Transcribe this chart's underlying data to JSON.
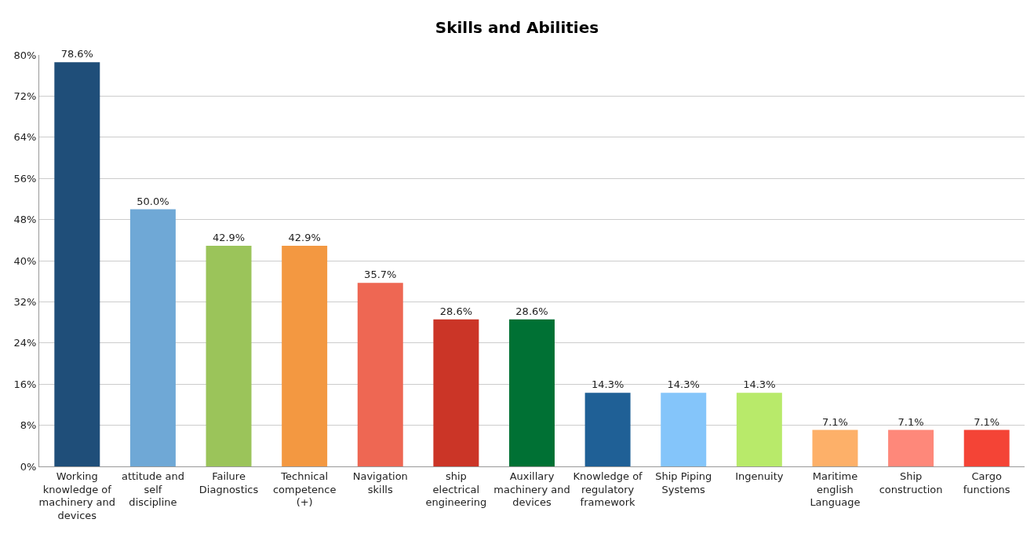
{
  "chart_data": {
    "type": "bar",
    "title": "Skills and Abilities",
    "categories": [
      "Working knowledge of machinery and devices",
      "attitude and self discipline",
      "Failure Diagnostics",
      "Technical competence (+)",
      "Navigation skills",
      "ship electrical engineering",
      "Auxillary machinery and devices",
      "Knowledge of regulatory framework",
      "Ship Piping Systems",
      "Ingenuity",
      "Maritime english Language",
      "Ship construction",
      "Cargo functions"
    ],
    "values": [
      78.6,
      50.0,
      42.9,
      42.9,
      35.7,
      28.6,
      28.6,
      14.3,
      14.3,
      14.3,
      7.1,
      7.1,
      7.1
    ],
    "value_labels": [
      "78.6%",
      "50.0%",
      "42.9%",
      "42.9%",
      "35.7%",
      "28.6%",
      "28.6%",
      "14.3%",
      "14.3%",
      "14.3%",
      "7.1%",
      "7.1%",
      "7.1%"
    ],
    "colors": [
      "#1f4e79",
      "#6fa8d6",
      "#9bc45a",
      "#f39841",
      "#ee6753",
      "#cb3527",
      "#007134",
      "#1f6096",
      "#84c5fa",
      "#b8ea6a",
      "#fdb069",
      "#fe887a",
      "#f44436"
    ],
    "ylim": [
      0,
      80
    ],
    "yticks": [
      {
        "value": 0,
        "label": "0%"
      },
      {
        "value": 8,
        "label": "8%"
      },
      {
        "value": 16,
        "label": "16%"
      },
      {
        "value": 24,
        "label": "24%"
      },
      {
        "value": 32,
        "label": "32%"
      },
      {
        "value": 40,
        "label": "40%"
      },
      {
        "value": 48,
        "label": "48%"
      },
      {
        "value": 56,
        "label": "56%"
      },
      {
        "value": 64,
        "label": "64%"
      },
      {
        "value": 72,
        "label": "72%"
      },
      {
        "value": 80,
        "label": "80%"
      }
    ],
    "grid": "y"
  }
}
